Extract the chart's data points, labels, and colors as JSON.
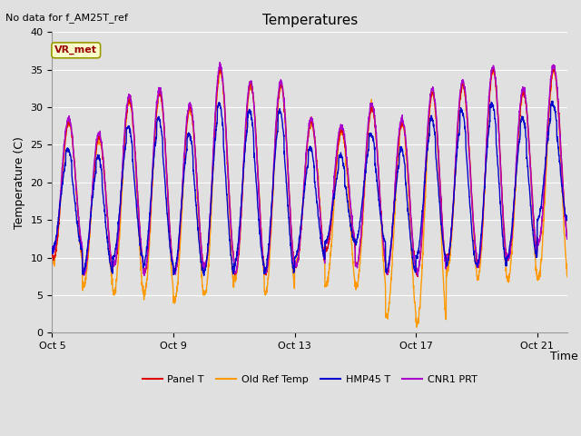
{
  "title": "Temperatures",
  "xlabel": "Time",
  "ylabel": "Temperature (C)",
  "top_left_note": "No data for f_AM25T_ref",
  "annotation_text": "VR_met",
  "ylim": [
    0,
    40
  ],
  "yticks": [
    0,
    5,
    10,
    15,
    20,
    25,
    30,
    35,
    40
  ],
  "xtick_labels": [
    "Oct 5",
    "Oct 9",
    "Oct 13",
    "Oct 17",
    "Oct 21"
  ],
  "x_ticks_days": [
    0,
    4,
    8,
    12,
    16
  ],
  "legend_labels": [
    "Panel T",
    "Old Ref Temp",
    "HMP45 T",
    "CNR1 PRT"
  ],
  "legend_colors": [
    "#dd0000",
    "#ff9900",
    "#0000cc",
    "#aa00cc"
  ],
  "background_color": "#e0e0e0",
  "plot_bg_color": "#e0e0e0",
  "grid_color": "#ffffff",
  "panel_t_color": "#dd0000",
  "old_ref_color": "#ff9900",
  "hmp45_color": "#0000cc",
  "cnr1_color": "#aa00cc",
  "line_width": 1.0,
  "total_days": 17,
  "points_per_day": 144,
  "day_max": [
    28,
    26,
    31,
    32,
    30,
    35,
    33,
    33,
    28,
    27,
    30,
    28,
    32,
    33,
    35,
    32,
    35
  ],
  "day_min_red": [
    10,
    8,
    9,
    8,
    8,
    9,
    8,
    8,
    9,
    11,
    9,
    8,
    8,
    10,
    9,
    10,
    12
  ],
  "day_min_orange": [
    10,
    7,
    6,
    6,
    5,
    6,
    8,
    6,
    10,
    7,
    7,
    3,
    2,
    9,
    8,
    8,
    8
  ],
  "day_min_blue": [
    11,
    8,
    10,
    9,
    8,
    8,
    9,
    8,
    10,
    12,
    12,
    8,
    10,
    9,
    9,
    10,
    15
  ],
  "day_min_purple": [
    11,
    8,
    9,
    8,
    8,
    9,
    8,
    8,
    9,
    12,
    9,
    8,
    8,
    10,
    9,
    10,
    12
  ]
}
